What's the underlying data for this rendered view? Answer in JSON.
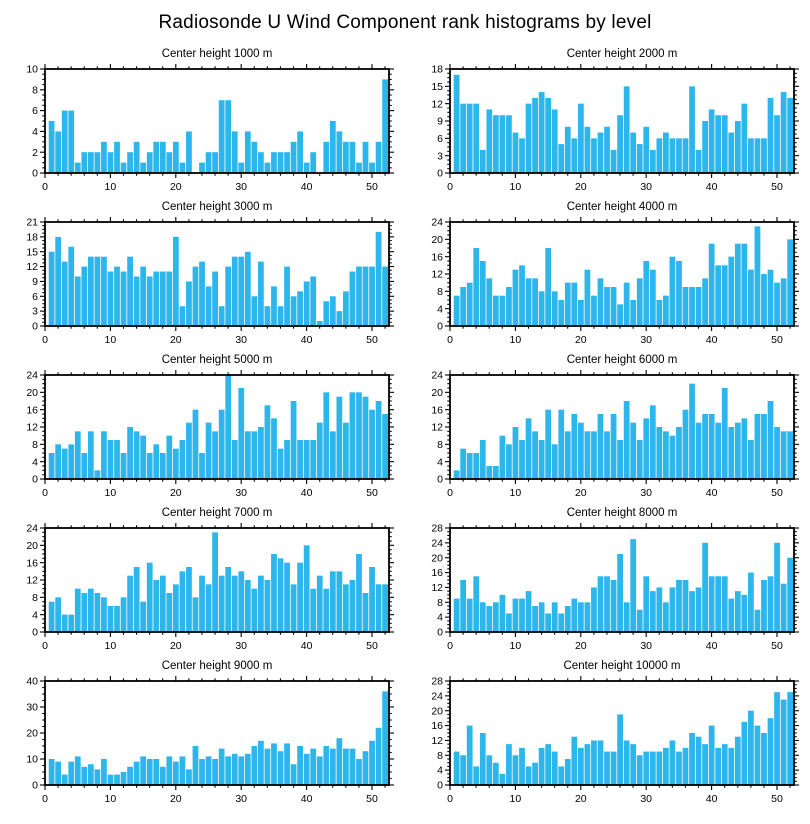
{
  "page_title": "Radiosonde U Wind Component rank histograms by level",
  "bar_color": "#2CB6EC",
  "axis_color": "#000000",
  "x_axis": {
    "max": 52.6,
    "major_step": 10,
    "minor_step": 2,
    "tick_labels": [
      0,
      10,
      20,
      30,
      40,
      50
    ]
  },
  "chart_data": [
    {
      "type": "bar",
      "title": "Center height 1000 m",
      "ylim": [
        0,
        10
      ],
      "ystep": 2,
      "xlim": [
        0,
        52
      ],
      "grid": false,
      "legend": "none",
      "values": [
        5,
        4,
        6,
        6,
        1,
        2,
        2,
        2,
        3,
        2,
        3,
        1,
        2,
        3,
        1,
        2,
        3,
        3,
        2,
        3,
        1,
        4,
        0,
        1,
        2,
        2,
        7,
        7,
        4,
        1,
        4,
        3,
        2,
        1,
        2,
        2,
        2,
        3,
        4,
        1,
        2,
        0,
        3,
        5,
        4,
        3,
        3,
        1,
        3,
        1,
        3,
        9
      ]
    },
    {
      "type": "bar",
      "title": "Center height 2000 m",
      "ylim": [
        0,
        18
      ],
      "ystep": 3,
      "xlim": [
        0,
        52
      ],
      "grid": false,
      "legend": "none",
      "values": [
        17,
        12,
        12,
        12,
        4,
        11,
        10,
        10,
        10,
        7,
        6,
        12,
        13,
        14,
        13,
        11,
        5,
        8,
        6,
        12,
        8,
        6,
        7,
        8,
        4,
        10,
        15,
        7,
        5,
        8,
        4,
        6,
        7,
        6,
        6,
        6,
        15,
        4,
        9,
        11,
        10,
        10,
        7,
        9,
        12,
        6,
        6,
        6,
        13,
        10,
        14,
        13
      ]
    },
    {
      "type": "bar",
      "title": "Center height 3000 m",
      "ylim": [
        0,
        21
      ],
      "ystep": 3,
      "xlim": [
        0,
        52
      ],
      "grid": false,
      "legend": "none",
      "values": [
        15,
        18,
        13,
        16,
        10,
        12,
        14,
        14,
        14,
        11,
        12,
        11,
        14,
        10,
        12,
        10,
        11,
        11,
        11,
        18,
        4,
        9,
        12,
        13,
        8,
        11,
        4,
        12,
        14,
        14,
        15,
        6,
        13,
        4,
        8,
        4,
        12,
        6,
        7,
        9,
        10,
        1,
        5,
        6,
        3,
        7,
        11,
        12,
        12,
        12,
        19,
        12
      ]
    },
    {
      "type": "bar",
      "title": "Center height 4000 m",
      "ylim": [
        0,
        24
      ],
      "ystep": 4,
      "xlim": [
        0,
        52
      ],
      "grid": false,
      "legend": "none",
      "values": [
        7,
        9,
        10,
        18,
        15,
        11,
        7,
        7,
        9,
        13,
        14,
        11,
        11,
        8,
        18,
        8,
        6,
        10,
        10,
        6,
        13,
        7,
        11,
        9,
        9,
        5,
        10,
        6,
        11,
        15,
        13,
        6,
        7,
        16,
        15,
        9,
        9,
        9,
        11,
        19,
        14,
        14,
        16,
        19,
        19,
        13,
        23,
        12,
        13,
        10,
        11,
        20
      ]
    },
    {
      "type": "bar",
      "title": "Center height 5000 m",
      "ylim": [
        0,
        24
      ],
      "ystep": 4,
      "xlim": [
        0,
        52
      ],
      "grid": false,
      "legend": "none",
      "values": [
        6,
        8,
        7,
        8,
        11,
        6,
        11,
        2,
        11,
        9,
        9,
        6,
        12,
        11,
        10,
        6,
        8,
        6,
        10,
        7,
        9,
        13,
        16,
        6,
        13,
        11,
        16,
        24,
        9,
        21,
        11,
        11,
        12,
        17,
        14,
        7,
        9,
        18,
        9,
        9,
        9,
        13,
        20,
        11,
        19,
        13,
        20,
        20,
        19,
        16,
        18,
        15
      ]
    },
    {
      "type": "bar",
      "title": "Center height 6000 m",
      "ylim": [
        0,
        24
      ],
      "ystep": 4,
      "xlim": [
        0,
        52
      ],
      "grid": false,
      "legend": "none",
      "values": [
        2,
        7,
        6,
        6,
        9,
        3,
        3,
        10,
        8,
        12,
        9,
        14,
        11,
        9,
        16,
        8,
        16,
        11,
        15,
        13,
        11,
        11,
        15,
        11,
        15,
        9,
        18,
        13,
        9,
        14,
        17,
        12,
        11,
        10,
        12,
        16,
        22,
        13,
        15,
        15,
        13,
        21,
        12,
        13,
        14,
        9,
        15,
        15,
        18,
        12,
        11,
        11
      ]
    },
    {
      "type": "bar",
      "title": "Center height 7000 m",
      "ylim": [
        0,
        24
      ],
      "ystep": 4,
      "xlim": [
        0,
        52
      ],
      "grid": false,
      "legend": "none",
      "values": [
        7,
        8,
        4,
        4,
        10,
        9,
        10,
        9,
        8,
        6,
        6,
        8,
        13,
        15,
        7,
        16,
        12,
        13,
        9,
        11,
        14,
        15,
        8,
        13,
        11,
        23,
        13,
        15,
        13,
        14,
        12,
        10,
        13,
        12,
        18,
        17,
        16,
        11,
        16,
        20,
        10,
        13,
        10,
        14,
        14,
        11,
        12,
        18,
        9,
        15,
        11,
        11
      ]
    },
    {
      "type": "bar",
      "title": "Center height 8000 m",
      "ylim": [
        0,
        28
      ],
      "ystep": 4,
      "xlim": [
        0,
        52
      ],
      "grid": false,
      "legend": "none",
      "values": [
        9,
        14,
        9,
        15,
        8,
        7,
        8,
        10,
        5,
        9,
        9,
        11,
        7,
        8,
        5,
        8,
        5,
        7,
        9,
        8,
        8,
        12,
        15,
        15,
        14,
        21,
        8,
        25,
        6,
        15,
        11,
        12,
        8,
        12,
        14,
        14,
        11,
        12,
        24,
        15,
        15,
        15,
        9,
        11,
        10,
        16,
        6,
        14,
        15,
        24,
        13,
        20
      ]
    },
    {
      "type": "bar",
      "title": "Center height 9000 m",
      "ylim": [
        0,
        40
      ],
      "ystep": 10,
      "xlim": [
        0,
        52
      ],
      "grid": false,
      "legend": "none",
      "values": [
        10,
        9,
        4,
        9,
        11,
        7,
        8,
        6,
        10,
        4,
        4,
        5,
        7,
        9,
        11,
        10,
        10,
        7,
        11,
        9,
        11,
        6,
        15,
        10,
        11,
        10,
        14,
        11,
        12,
        11,
        12,
        15,
        17,
        14,
        16,
        13,
        16,
        8,
        15,
        12,
        14,
        11,
        15,
        14,
        18,
        14,
        14,
        10,
        13,
        17,
        22,
        36
      ]
    },
    {
      "type": "bar",
      "title": "Center height 10000 m",
      "ylim": [
        0,
        28
      ],
      "ystep": 4,
      "xlim": [
        0,
        52
      ],
      "grid": false,
      "legend": "none",
      "values": [
        9,
        8,
        16,
        5,
        14,
        8,
        6,
        3,
        11,
        8,
        10,
        5,
        6,
        10,
        11,
        9,
        5,
        7,
        13,
        10,
        11,
        12,
        12,
        9,
        9,
        19,
        12,
        11,
        8,
        9,
        9,
        9,
        10,
        12,
        9,
        10,
        14,
        13,
        11,
        16,
        10,
        11,
        10,
        13,
        17,
        20,
        16,
        14,
        18,
        25,
        23,
        25
      ]
    }
  ]
}
